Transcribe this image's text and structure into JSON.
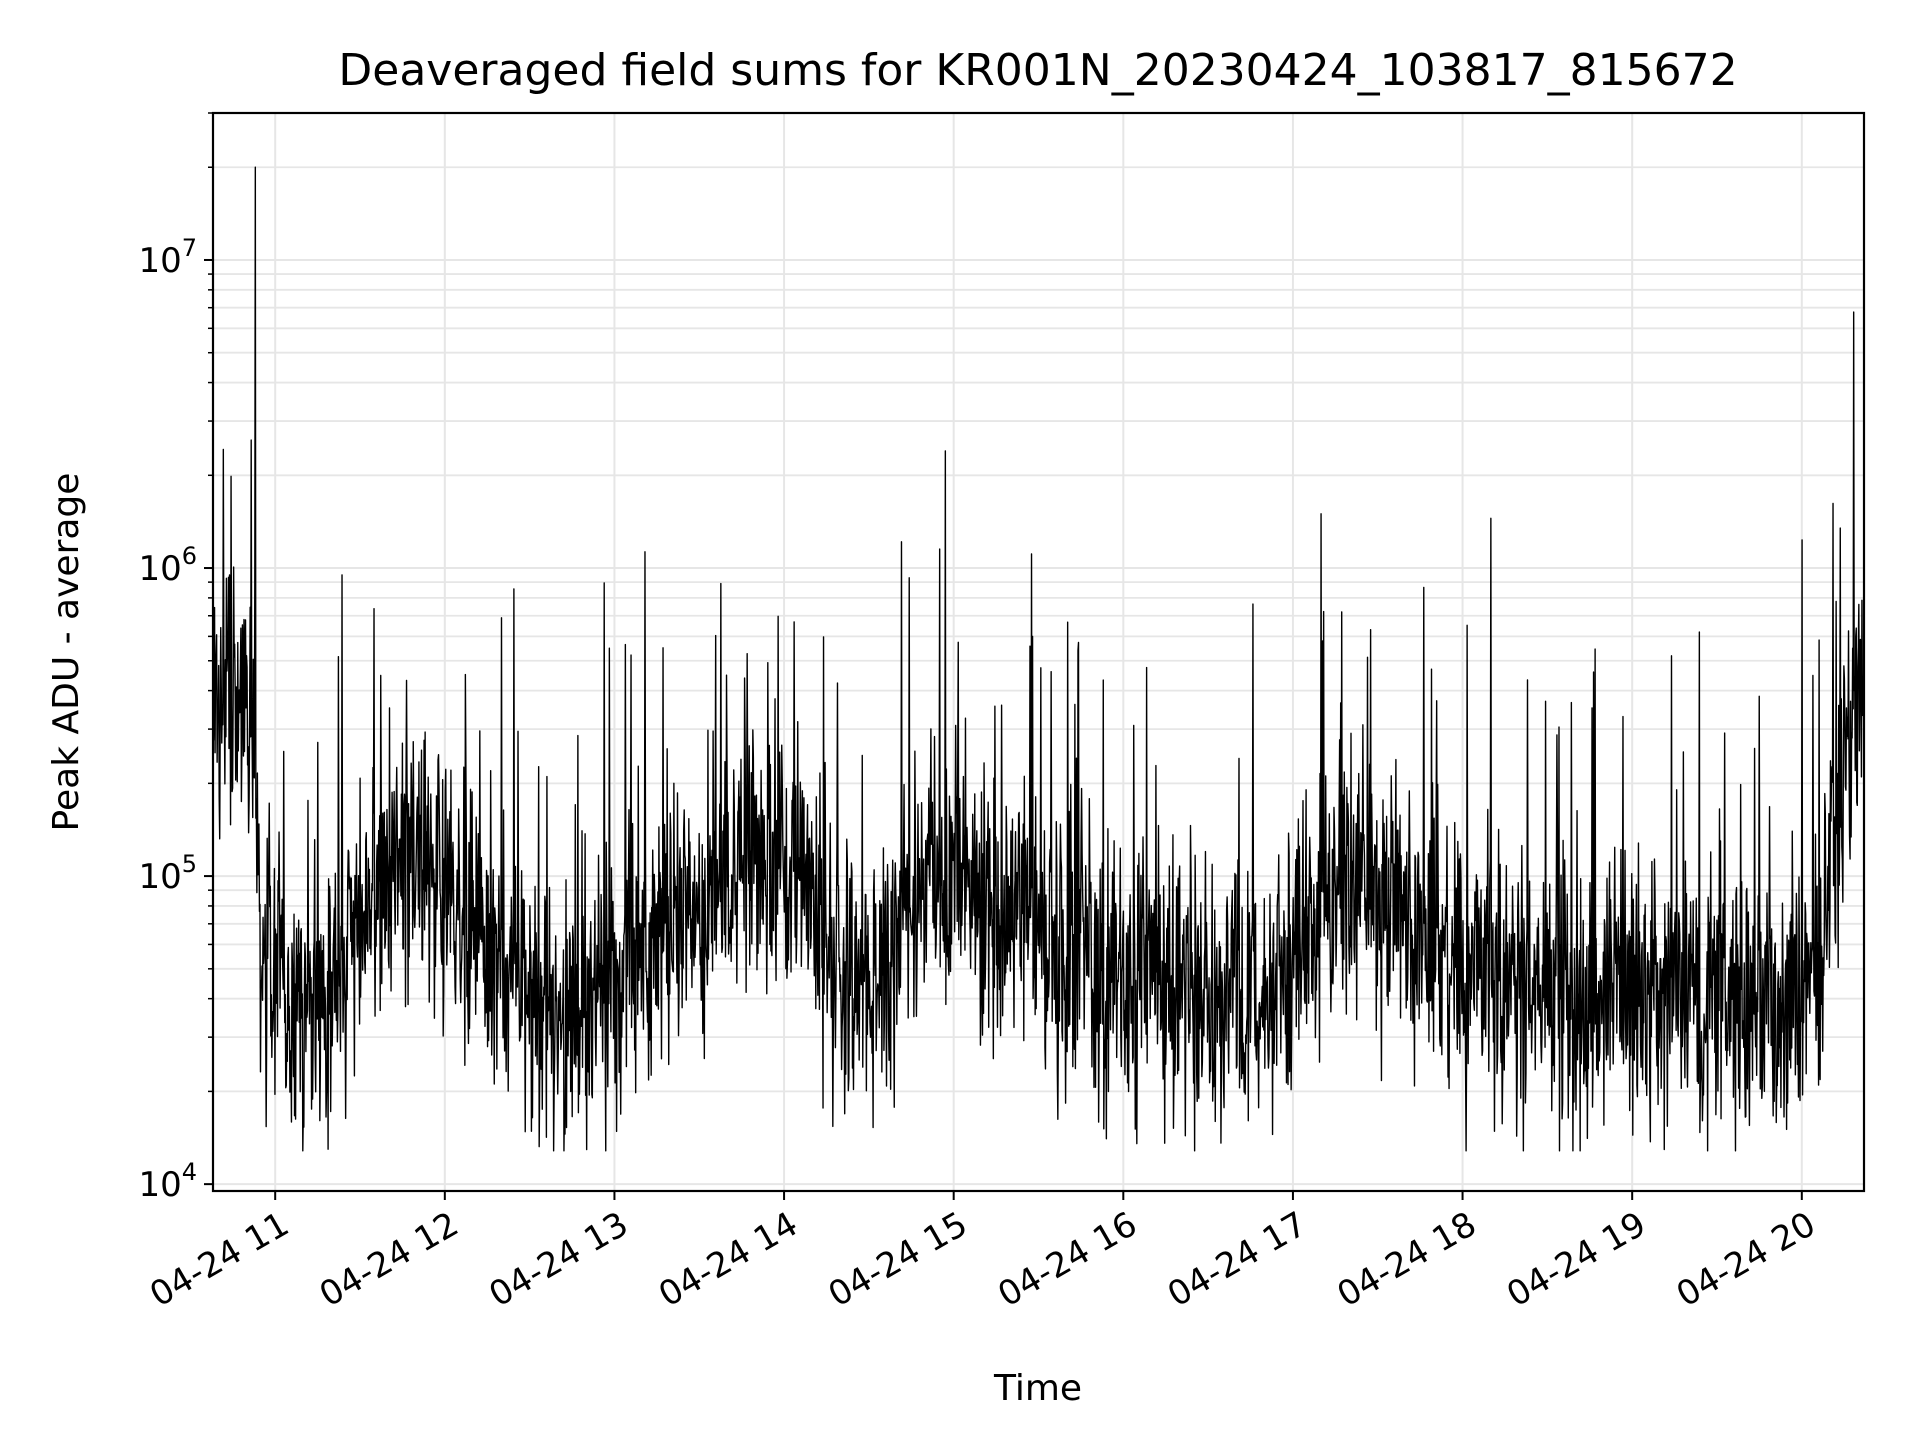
{
  "chart_data": {
    "type": "line",
    "title": "Deaveraged field sums for KR001N_20230424_103817_815672",
    "xlabel": "Time",
    "ylabel": "Peak ADU - average",
    "yscale": "log",
    "ylim": [
      9500,
      30000000
    ],
    "xlim": [
      "2023-04-24 10:38",
      "2023-04-24 20:22"
    ],
    "grid": true,
    "x_tick_labels": [
      "04-24 11",
      "04-24 12",
      "04-24 13",
      "04-24 14",
      "04-24 15",
      "04-24 16",
      "04-24 17",
      "04-24 18",
      "04-24 19",
      "04-24 20"
    ],
    "y_ticks": [
      {
        "value": 10000,
        "base": "10",
        "exp": "4"
      },
      {
        "value": 100000,
        "base": "10",
        "exp": "5"
      },
      {
        "value": 1000000,
        "base": "10",
        "exp": "6"
      },
      {
        "value": 10000000,
        "base": "10",
        "exp": "7"
      }
    ],
    "line_color": "#000000",
    "series_envelope": {
      "x": [
        "2023-04-24 10:38",
        "2023-04-24 10:52",
        "2023-04-24 10:55",
        "2023-04-24 11:20",
        "2023-04-24 11:45",
        "2023-04-24 12:15",
        "2023-04-24 12:40",
        "2023-04-24 13:10",
        "2023-04-24 13:40",
        "2023-04-24 14:00",
        "2023-04-24 14:25",
        "2023-04-24 14:55",
        "2023-04-24 15:20",
        "2023-04-24 15:50",
        "2023-04-24 16:20",
        "2023-04-24 16:50",
        "2023-04-24 17:25",
        "2023-04-24 17:50",
        "2023-04-24 18:20",
        "2023-04-24 18:50",
        "2023-04-24 19:20",
        "2023-04-24 19:50",
        "2023-04-24 20:05",
        "2023-04-24 20:22"
      ],
      "y": [
        400000,
        350000,
        45000,
        42000,
        130000,
        60000,
        30000,
        55000,
        100000,
        120000,
        40000,
        110000,
        70000,
        50000,
        42000,
        40000,
        110000,
        60000,
        45000,
        40000,
        38000,
        38000,
        50000,
        550000
      ]
    },
    "notable_peaks": [
      {
        "x": "2023-04-24 10:53",
        "y": 20000000
      },
      {
        "x": "2023-04-24 14:57",
        "y": 2400000
      },
      {
        "x": "2023-04-24 17:10",
        "y": 1500000
      },
      {
        "x": "2023-04-24 18:10",
        "y": 1450000
      }
    ]
  }
}
